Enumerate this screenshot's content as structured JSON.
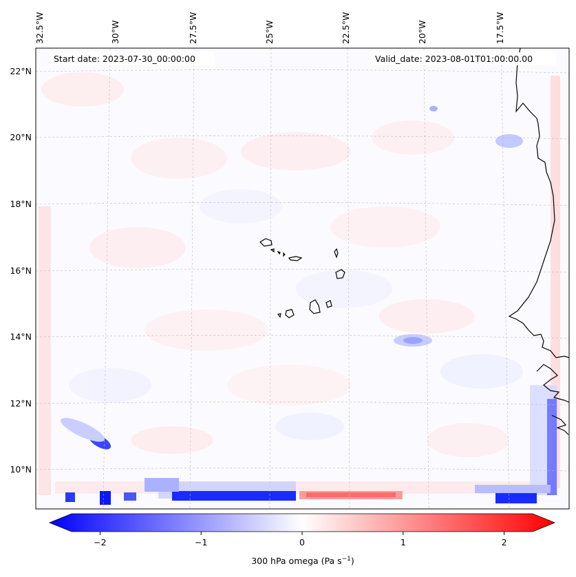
{
  "header": {
    "start_date": "Start date: 2023-07-30_00:00:00",
    "valid_date": "Valid_date: 2023-08-01T01:00:00.00"
  },
  "axes": {
    "top_lon_labels": [
      "32.5°W",
      "30°W",
      "27.5°W",
      "25°W",
      "22.5°W",
      "20°W",
      "17.5°W"
    ],
    "left_lat_labels": [
      "22°N",
      "20°N",
      "18°N",
      "16°N",
      "14°N",
      "12°N",
      "10°N"
    ]
  },
  "colorbar": {
    "ticks": [
      "−2",
      "−1",
      "0",
      "1",
      "2"
    ],
    "label_prefix": "300 hPa omega (Pa s",
    "label_sup": "−1",
    "label_suffix": ")",
    "min": -2.5,
    "max": 2.5,
    "colors": {
      "negative": "#0000ff",
      "neutral": "#ffffff",
      "positive": "#ff0000"
    }
  },
  "map": {
    "variable": "300 hPa omega",
    "colors": {
      "coastline": "#000000",
      "grid": "#b0b0b0",
      "frame": "#000000"
    }
  }
}
